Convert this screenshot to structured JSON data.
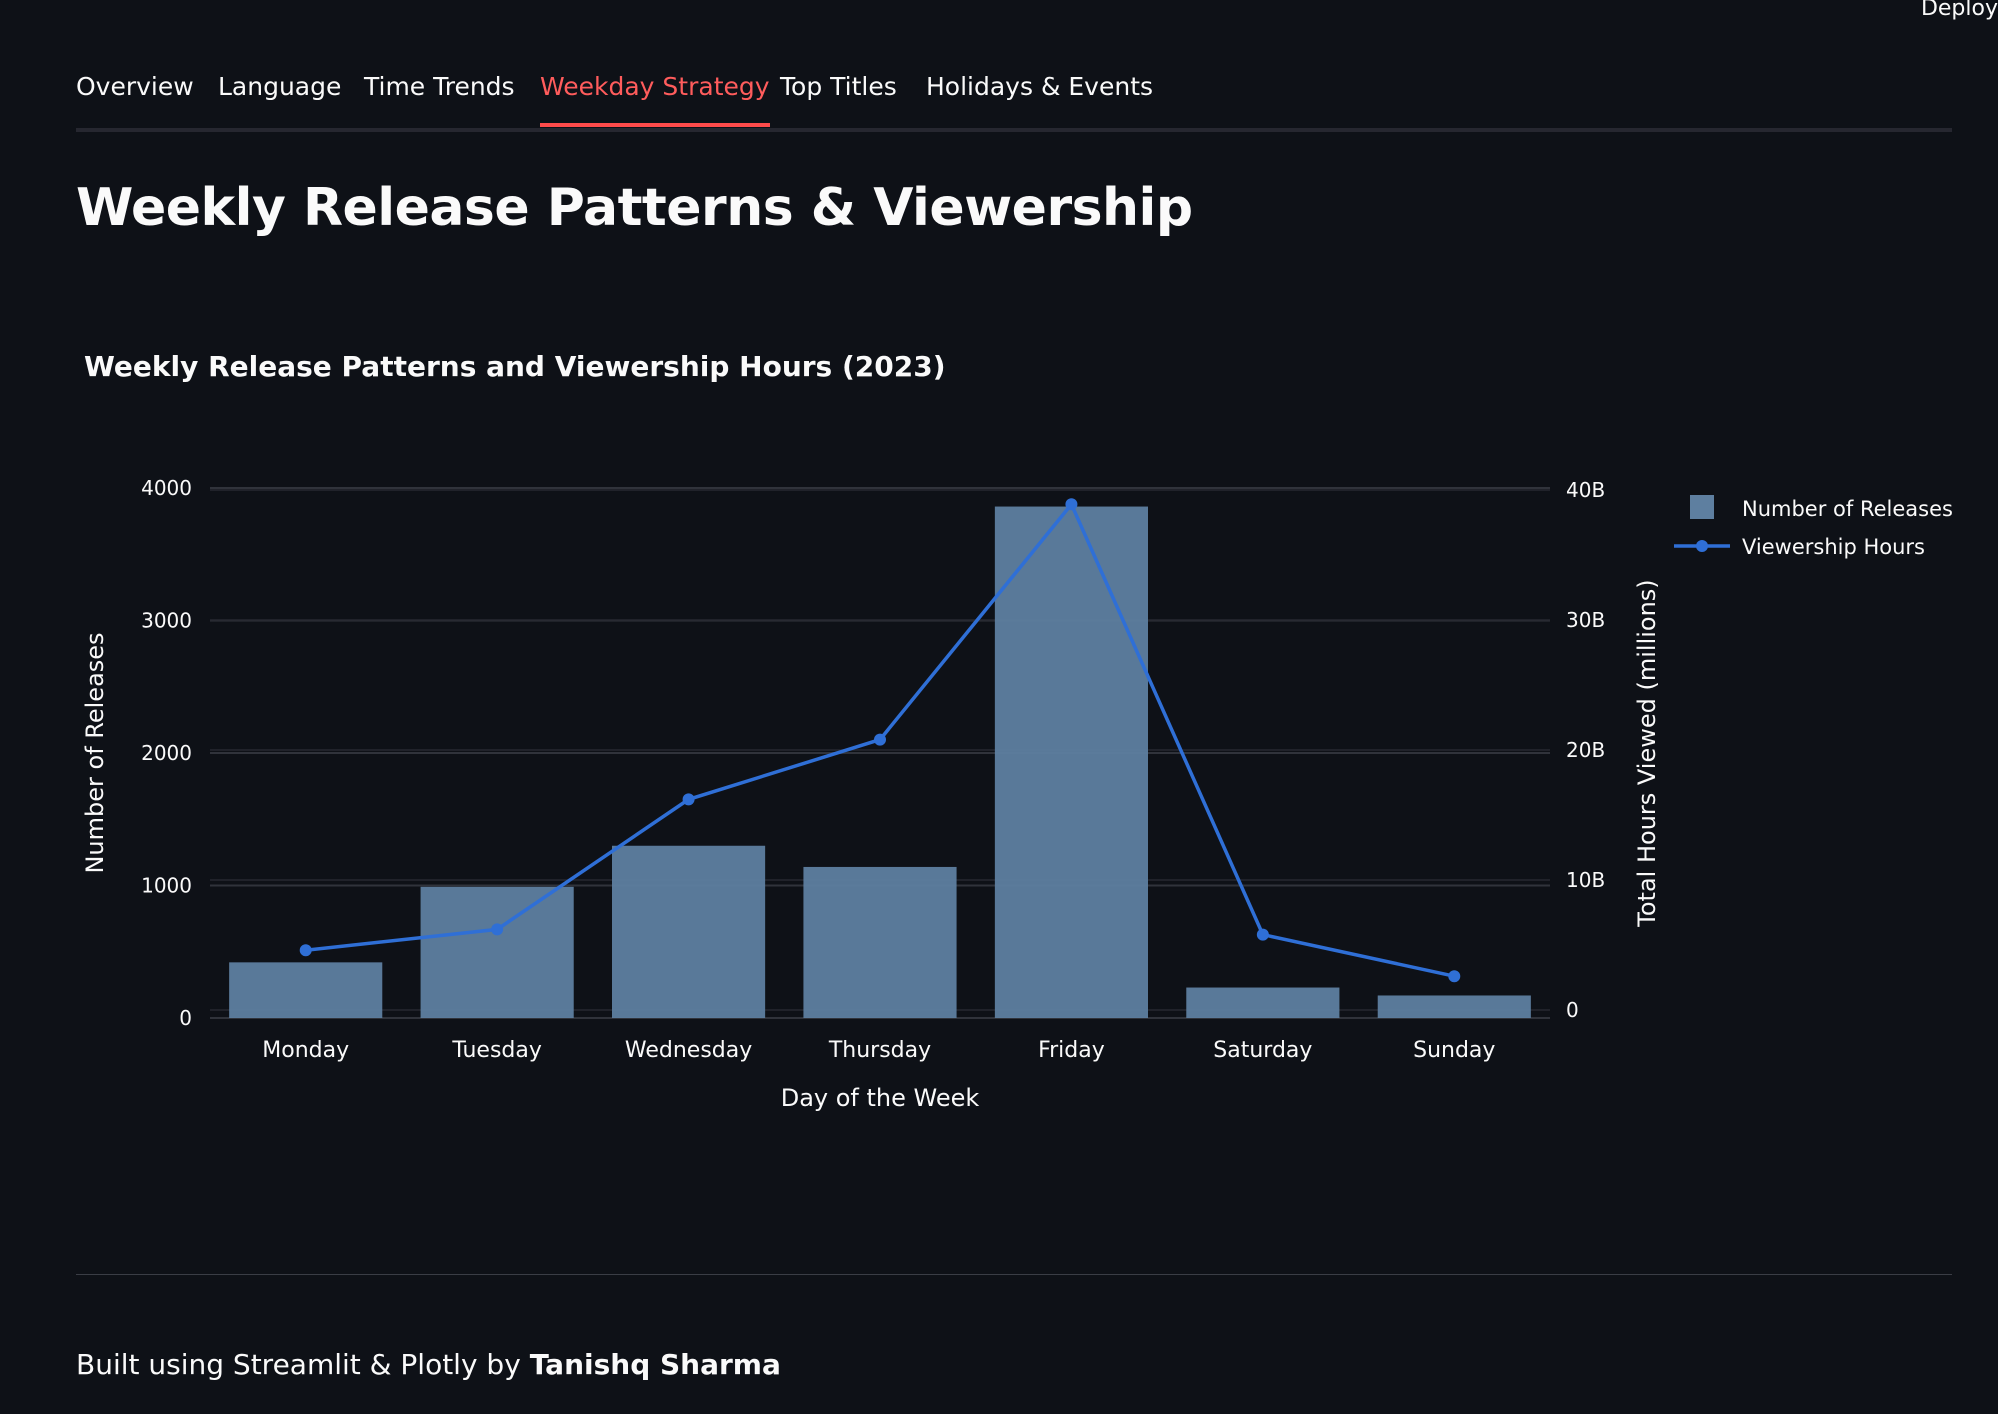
{
  "header": {
    "deploy_label": "Deploy"
  },
  "tabs": [
    {
      "label": "Overview",
      "active": false
    },
    {
      "label": "Language",
      "active": false
    },
    {
      "label": "Time Trends",
      "active": false
    },
    {
      "label": "Weekday Strategy",
      "active": true
    },
    {
      "label": "Top Titles",
      "active": false
    },
    {
      "label": "Holidays & Events",
      "active": false
    }
  ],
  "page": {
    "title": "Weekly Release Patterns & Viewership"
  },
  "chart_data": {
    "type": "bar",
    "title": "Weekly Release Patterns and Viewership Hours (2023)",
    "xlabel": "Day of the Week",
    "ylabel": "Number of Releases",
    "y2label": "Total Hours Viewed (millions)",
    "categories": [
      "Monday",
      "Tuesday",
      "Wednesday",
      "Thursday",
      "Friday",
      "Saturday",
      "Sunday"
    ],
    "ylim": [
      0,
      4000
    ],
    "y2lim": [
      0,
      40000000000
    ],
    "yticks": [
      "0",
      "1000",
      "2000",
      "3000",
      "4000"
    ],
    "y2ticks": [
      "0",
      "10B",
      "20B",
      "30B",
      "40B"
    ],
    "grid": true,
    "legend_position": "top-right",
    "series": [
      {
        "name": "Number of Releases",
        "type": "bar",
        "axis": "left",
        "color": "#5e7fa0",
        "values": [
          420,
          990,
          1300,
          1140,
          3860,
          230,
          170
        ]
      },
      {
        "name": "Viewership Hours",
        "type": "line",
        "axis": "right",
        "color": "#2f6fd6",
        "values": [
          4600000000,
          6200000000,
          16200000000,
          20800000000,
          38900000000,
          5800000000,
          2600000000
        ]
      }
    ]
  },
  "footer": {
    "prefix": "Built using Streamlit & Plotly by ",
    "author": "Tanishq Sharma"
  }
}
